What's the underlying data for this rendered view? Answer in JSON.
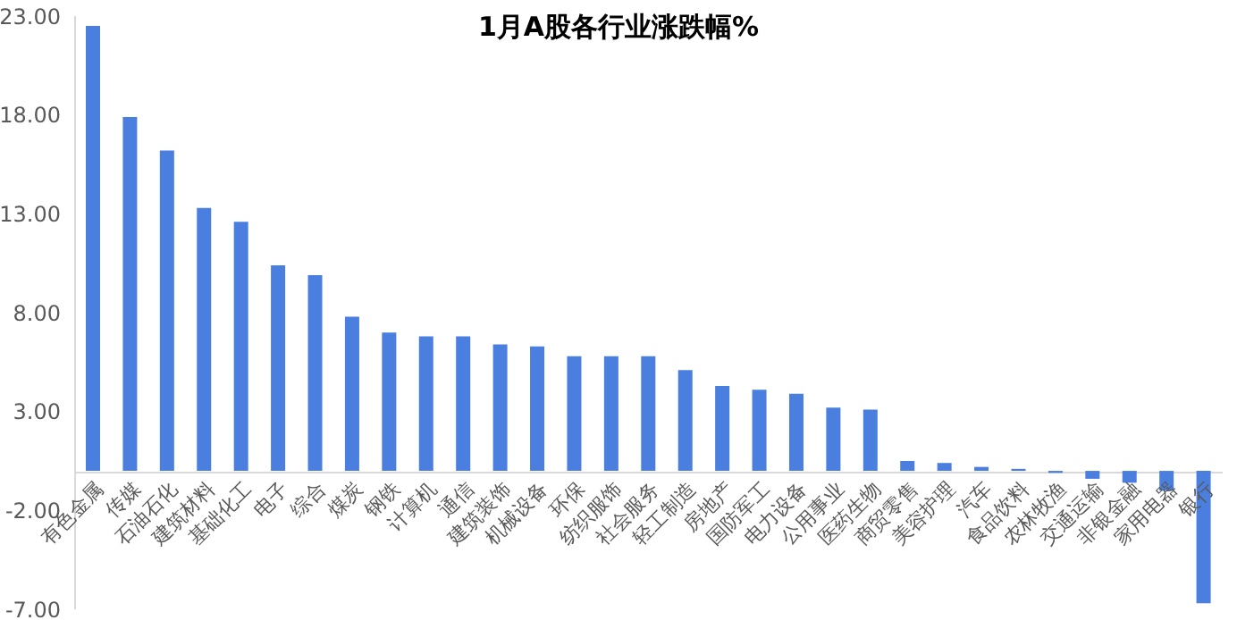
{
  "chart_data": {
    "type": "bar",
    "title": "1月A股各行业涨跌幅%",
    "categories": [
      "有色金属",
      "传媒",
      "石油石化",
      "建筑材料",
      "基础化工",
      "电子",
      "综合",
      "煤炭",
      "钢铁",
      "计算机",
      "通信",
      "建筑装饰",
      "机械设备",
      "环保",
      "纺织服饰",
      "社会服务",
      "轻工制造",
      "房地产",
      "国防军工",
      "电力设备",
      "公用事业",
      "医药生物",
      "商贸零售",
      "美容护理",
      "汽车",
      "食品饮料",
      "农林牧渔",
      "交通运输",
      "非银金融",
      "家用电器",
      "银行"
    ],
    "values": [
      22.5,
      17.9,
      16.2,
      13.3,
      12.6,
      10.4,
      9.9,
      7.8,
      7.0,
      6.8,
      6.8,
      6.4,
      6.3,
      5.8,
      5.8,
      5.8,
      5.1,
      4.3,
      4.1,
      3.9,
      3.2,
      3.1,
      0.5,
      0.4,
      0.2,
      0.1,
      -0.1,
      -0.4,
      -0.6,
      -1.0,
      -6.7
    ],
    "color": "#4a7fe0",
    "ylim": [
      -7,
      23
    ],
    "yticks": [
      {
        "value": -7,
        "label": "-7.00"
      },
      {
        "value": -2,
        "label": "-2.00"
      },
      {
        "value": 3,
        "label": "3.00"
      },
      {
        "value": 8,
        "label": "8.00"
      },
      {
        "value": 13,
        "label": "13.00"
      },
      {
        "value": 18,
        "label": "18.00"
      },
      {
        "value": 23,
        "label": "23.00"
      }
    ]
  }
}
